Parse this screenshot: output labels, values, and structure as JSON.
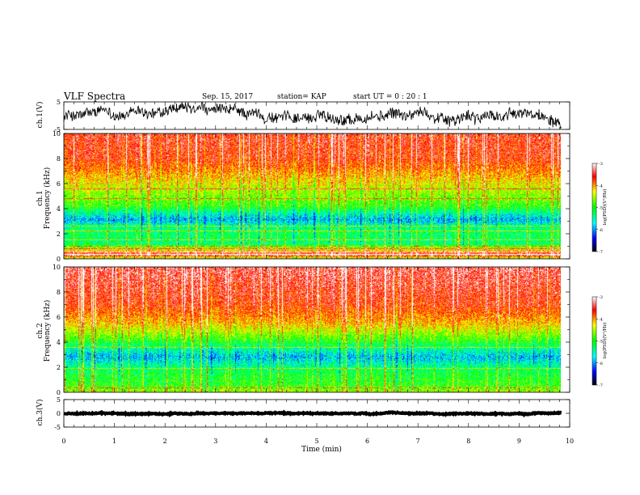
{
  "header": {
    "title": "VLF Spectra",
    "date": "Sep. 15, 2017",
    "station": "station= KAP",
    "start": "start  UT =   0 : 20 : 1"
  },
  "chart_data": [
    {
      "type": "line",
      "name": "waveform-ch1",
      "ylabel": "ch.1(V)",
      "ylim": [
        -5,
        5
      ],
      "yticks": [
        "5",
        "-5"
      ],
      "xlim": [
        0,
        10
      ],
      "data_end_min": 9.83,
      "level_v": 0,
      "noise_amplitude_v": 4
    },
    {
      "type": "heatmap",
      "name": "spectrogram-ch1",
      "ylabel": "Frequency  (kHz)",
      "channel_label": "ch.1",
      "ylim": [
        0,
        10
      ],
      "yticks": [
        "0",
        "2",
        "4",
        "6",
        "8",
        "10"
      ],
      "xlim": [
        0,
        10
      ],
      "data_end_min": 9.83,
      "colorbar": {
        "label": "log(PSD)(V²/Hz)",
        "range": [
          -7,
          -3
        ],
        "ticks": [
          "-3",
          "-4",
          "-5",
          "-6",
          "-7"
        ]
      },
      "profile": [
        {
          "f": 0.0,
          "v": -4.6
        },
        {
          "f": 0.3,
          "v": -3.2
        },
        {
          "f": 0.7,
          "v": -4.4
        },
        {
          "f": 1.2,
          "v": -5.3
        },
        {
          "f": 2.0,
          "v": -5.2
        },
        {
          "f": 2.6,
          "v": -5.4
        },
        {
          "f": 3.1,
          "v": -5.85
        },
        {
          "f": 3.6,
          "v": -5.5
        },
        {
          "f": 4.2,
          "v": -4.9
        },
        {
          "f": 5.2,
          "v": -4.6
        },
        {
          "f": 6.5,
          "v": -4.1
        },
        {
          "f": 8.0,
          "v": -3.6
        },
        {
          "f": 10.0,
          "v": -3.5
        }
      ],
      "tones_khz": [
        0.3,
        0.5,
        0.8,
        1.0,
        1.5,
        2.2,
        2.6,
        4.8,
        5.6
      ]
    },
    {
      "type": "heatmap",
      "name": "spectrogram-ch2",
      "ylabel": "Frequency  (kHz)",
      "channel_label": "ch.2",
      "ylim": [
        0,
        10
      ],
      "yticks": [
        "0",
        "2",
        "4",
        "6",
        "8",
        "10"
      ],
      "xlim": [
        0,
        10
      ],
      "data_end_min": 9.83,
      "colorbar": {
        "label": "log(PSD)(V²/Hz)",
        "range": [
          -7,
          -3
        ],
        "ticks": [
          "-3",
          "-4",
          "-5",
          "-6",
          "-7"
        ]
      },
      "profile": [
        {
          "f": 0.0,
          "v": -4.5
        },
        {
          "f": 0.4,
          "v": -4.9
        },
        {
          "f": 1.0,
          "v": -5.0
        },
        {
          "f": 1.5,
          "v": -5.1
        },
        {
          "f": 2.0,
          "v": -5.35
        },
        {
          "f": 2.8,
          "v": -5.8
        },
        {
          "f": 3.5,
          "v": -5.4
        },
        {
          "f": 4.3,
          "v": -4.8
        },
        {
          "f": 5.5,
          "v": -4.1
        },
        {
          "f": 7.0,
          "v": -3.6
        },
        {
          "f": 10.0,
          "v": -3.3
        }
      ],
      "tones_khz": [
        0.3,
        1.9,
        3.6
      ]
    },
    {
      "type": "line",
      "name": "waveform-ch3",
      "ylabel": "ch.3(V)",
      "ylim": [
        -5,
        5
      ],
      "yticks": [
        "5",
        "0",
        "-5"
      ],
      "xlim": [
        0,
        10
      ],
      "data_end_min": 9.83,
      "level_v": 0,
      "noise_amplitude_v": 0.4
    }
  ],
  "x_axis": {
    "label": "Time  (min)",
    "ticks": [
      "0",
      "1",
      "2",
      "3",
      "4",
      "5",
      "6",
      "7",
      "8",
      "9",
      "10"
    ]
  },
  "colors": {
    "colormap": [
      "#000000",
      "#0000ff",
      "#00ffff",
      "#00ff00",
      "#ffff00",
      "#ff0000",
      "#ffffff"
    ],
    "colormap_stops": [
      -7,
      -6.3,
      -5.7,
      -5.0,
      -4.3,
      -3.5,
      -3
    ],
    "waveform": "#000000"
  }
}
